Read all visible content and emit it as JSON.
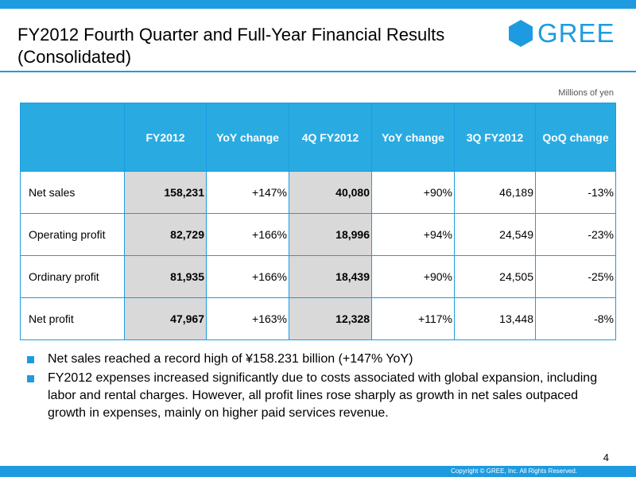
{
  "header": {
    "title_line1": "FY2012 Fourth Quarter and Full-Year Financial Results",
    "title_line2": "(Consolidated)",
    "logo_text": "GREE",
    "logo_icon": "gree-hexagon-logo",
    "accent_color": "#1e9be0"
  },
  "unit_note": "Millions of yen",
  "table": {
    "columns": [
      "",
      "FY2012",
      "YoY change",
      "4Q FY2012",
      "YoY change",
      "3Q FY2012",
      "QoQ change"
    ],
    "rows": [
      {
        "label": "Net sales",
        "values": [
          "158,231",
          "+147%",
          "40,080",
          "+90%",
          "46,189",
          "-13%"
        ]
      },
      {
        "label": "Operating profit",
        "values": [
          "82,729",
          "+166%",
          "18,996",
          "+94%",
          "24,549",
          "-23%"
        ]
      },
      {
        "label": "Ordinary profit",
        "values": [
          "81,935",
          "+166%",
          "18,439",
          "+90%",
          "24,505",
          "-25%"
        ]
      },
      {
        "label": "Net profit",
        "values": [
          "47,967",
          "+163%",
          "12,328",
          "+117%",
          "13,448",
          "-8%"
        ]
      }
    ]
  },
  "bullets": [
    "Net sales reached a record high of ¥158.231 billion (+147% YoY)",
    "FY2012 expenses increased significantly due to costs associated with global expansion, including labor and rental charges. However, all profit lines rose sharply as growth in net sales outpaced growth in expenses, mainly on higher paid services revenue."
  ],
  "footer": {
    "page_number": "4",
    "copyright": "Copyright © GREE, Inc. All Rights Reserved."
  }
}
